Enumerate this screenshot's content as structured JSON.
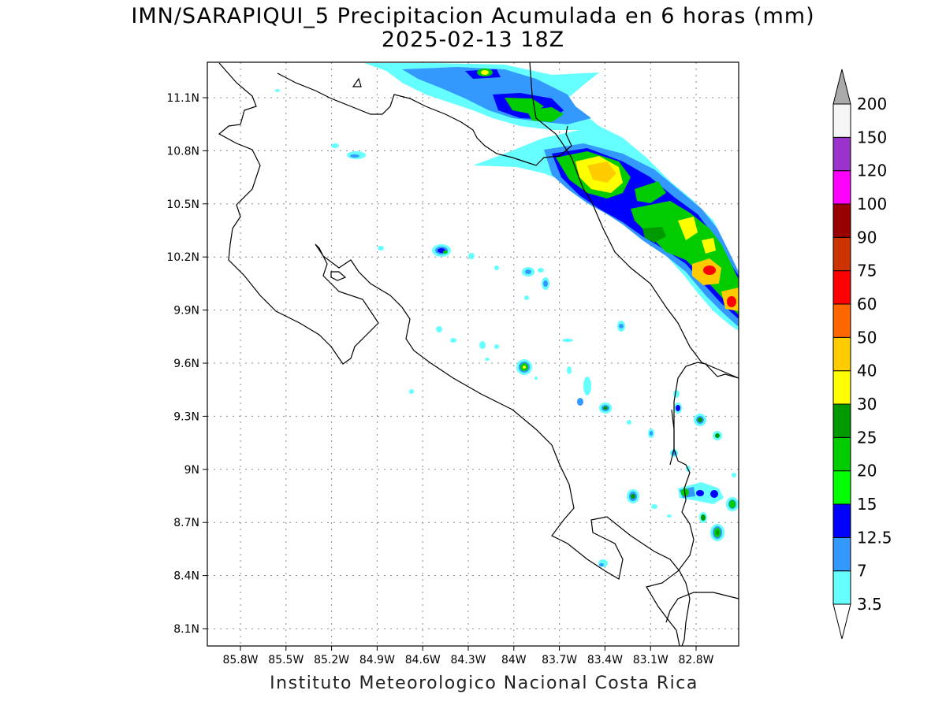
{
  "title": {
    "line1": "IMN/SARAPIQUI_5 Precipitacion Acumulada en 6 horas (mm)",
    "line2": "2025-02-13 18Z"
  },
  "credit": "Instituto Meteorologico Nacional Costa Rica",
  "map": {
    "lat_labels": [
      "11.1N",
      "10.8N",
      "10.5N",
      "10.2N",
      "9.9N",
      "9.6N",
      "9.3N",
      "9N",
      "8.7N",
      "8.4N",
      "8.1N"
    ],
    "lon_labels": [
      "85.8W",
      "85.5W",
      "85.2W",
      "84.9W",
      "84.6W",
      "84.3W",
      "84W",
      "83.7W",
      "83.4W",
      "83.1W",
      "82.8W"
    ],
    "grid": true
  },
  "colorbar": {
    "levels": [
      "3.5",
      "7",
      "12.5",
      "15",
      "20",
      "25",
      "30",
      "40",
      "50",
      "60",
      "75",
      "90",
      "100",
      "120",
      "150",
      "200"
    ],
    "colors": [
      "#66ffff",
      "#3399ff",
      "#0000ff",
      "#00ff00",
      "#00cc00",
      "#009900",
      "#ffff00",
      "#ffcc00",
      "#ff6600",
      "#ff0000",
      "#cc3300",
      "#990000",
      "#ff00ff",
      "#9933cc",
      "#f5f5f5",
      "#aaaaaa"
    ],
    "over_color": "#aaaaaa",
    "under_color": "#ffffff"
  }
}
